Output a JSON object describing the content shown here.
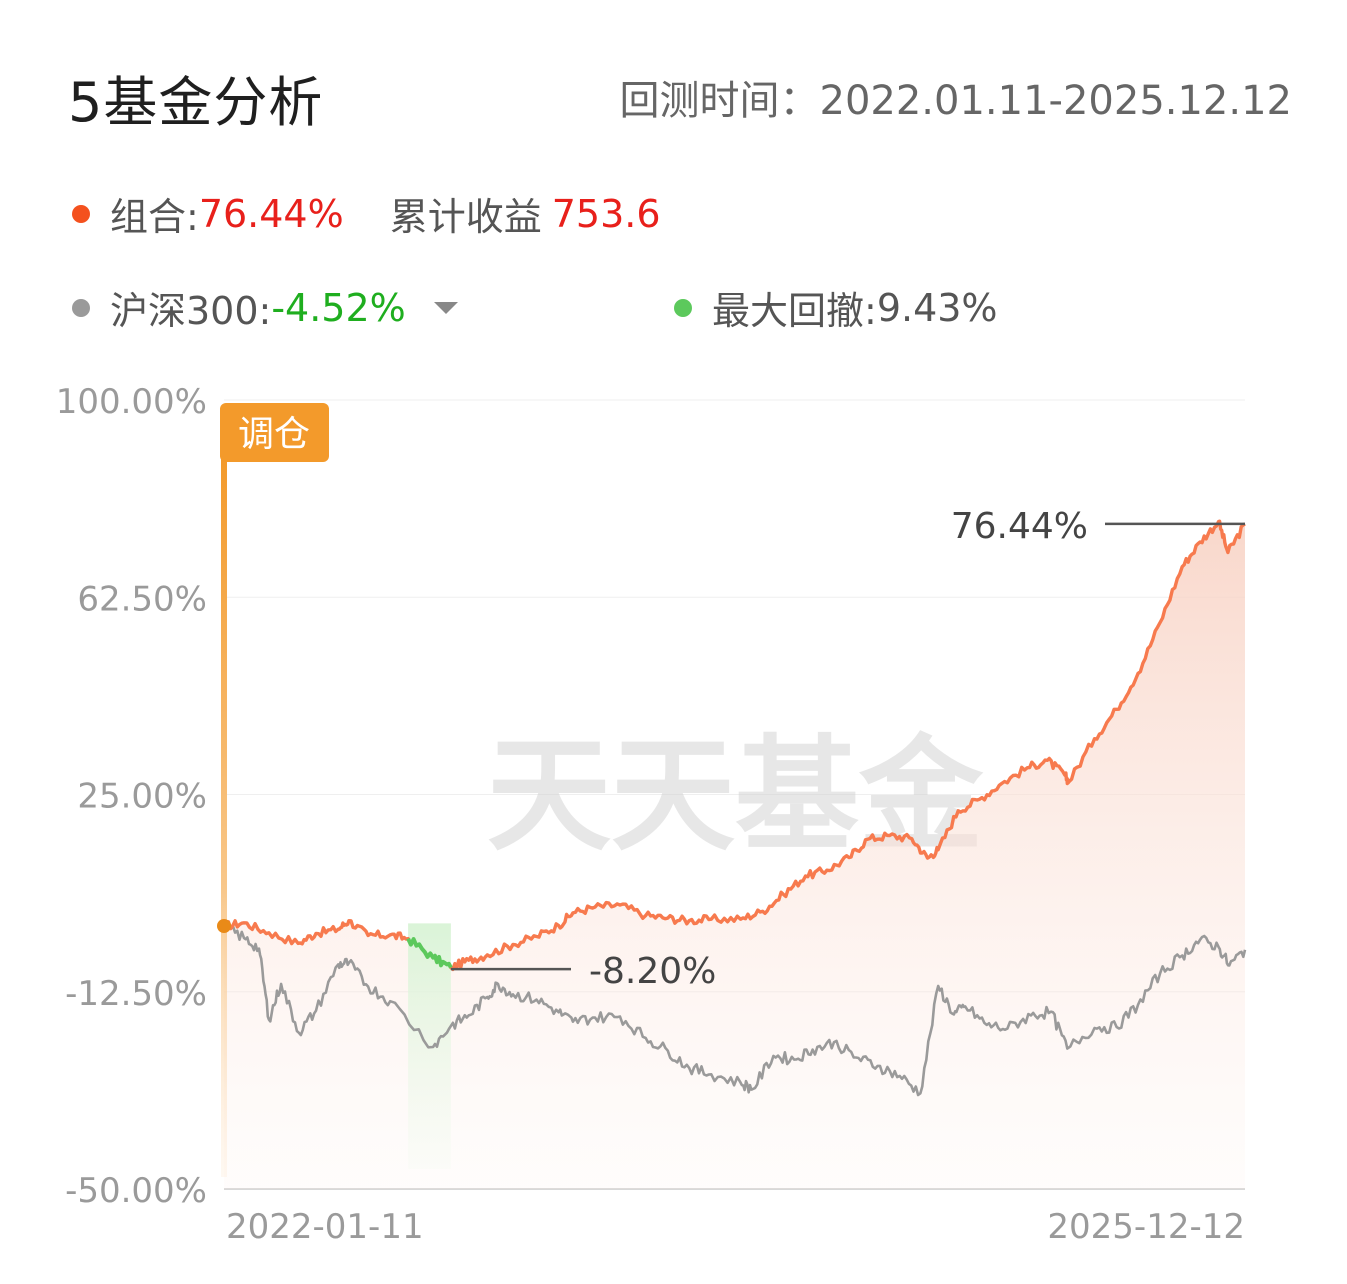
{
  "header": {
    "title": "5基金分析",
    "period": "回测时间：2022.01.11-2025.12.12"
  },
  "legend": {
    "portfolio_label": "组合:",
    "portfolio_value": "76.44%",
    "cumulative_label": "累计收益",
    "cumulative_value": "753.6",
    "benchmark_label": "沪深300:",
    "benchmark_value": "-4.52%",
    "drawdown_label": "最大回撤:",
    "drawdown_value": "9.43%"
  },
  "colors": {
    "portfolio": "#f4511e",
    "portfolio_line": "#f77a4e",
    "benchmark": "#9a9a9a",
    "drawdown": "#5cc95c",
    "rebalance": "#f39a2b",
    "positive": "#e8201b",
    "negative": "#1fae1f"
  },
  "badge": {
    "rebalance_label": "调仓"
  },
  "watermark": "天天基金",
  "chart_data": {
    "type": "line",
    "x_start": "2022-01-11",
    "x_end": "2025-12-12",
    "x_tick_labels": [
      "2022-01-11",
      "2025-12-12"
    ],
    "y_tick_labels": [
      "100.00%",
      "62.50%",
      "25.00%",
      "-12.50%",
      "-50.00%"
    ],
    "ylim": [
      -50,
      100
    ],
    "grid": true,
    "series": [
      {
        "name": "组合",
        "points": [
          [
            "2022-01-11",
            0.0
          ],
          [
            "2022-02-08",
            0.6
          ],
          [
            "2022-03-15",
            -1.3
          ],
          [
            "2022-04-25",
            -3.3
          ],
          [
            "2022-05-20",
            -1.4
          ],
          [
            "2022-06-20",
            -0.6
          ],
          [
            "2022-07-05",
            1.0
          ],
          [
            "2022-08-01",
            -1.8
          ],
          [
            "2022-09-01",
            -1.7
          ],
          [
            "2022-09-26",
            -2.4
          ],
          [
            "2022-10-31",
            -6.0
          ],
          [
            "2022-11-25",
            -7.9
          ],
          [
            "2022-12-20",
            -6.5
          ],
          [
            "2023-01-15",
            -5.5
          ],
          [
            "2023-02-20",
            -3.5
          ],
          [
            "2023-03-25",
            -2.0
          ],
          [
            "2023-04-25",
            0.1
          ],
          [
            "2023-05-15",
            2.5
          ],
          [
            "2023-06-15",
            3.6
          ],
          [
            "2023-07-20",
            4.0
          ],
          [
            "2023-08-25",
            2.0
          ],
          [
            "2023-09-25",
            1.5
          ],
          [
            "2023-10-25",
            1.0
          ],
          [
            "2023-11-25",
            1.3
          ],
          [
            "2024-01-05",
            1.3
          ],
          [
            "2024-02-05",
            2.8
          ],
          [
            "2024-03-05",
            6.0
          ],
          [
            "2024-04-05",
            9.5
          ],
          [
            "2024-05-05",
            10.6
          ],
          [
            "2024-06-05",
            13.0
          ],
          [
            "2024-07-01",
            16.5
          ],
          [
            "2024-08-01",
            17.2
          ],
          [
            "2024-09-01",
            16.6
          ],
          [
            "2024-09-23",
            12.9
          ],
          [
            "2024-10-08",
            14.5
          ],
          [
            "2024-11-05",
            21.9
          ],
          [
            "2024-12-05",
            24.1
          ],
          [
            "2025-01-05",
            27.1
          ],
          [
            "2025-02-10",
            30.1
          ],
          [
            "2025-03-10",
            31.5
          ],
          [
            "2025-04-03",
            28.8
          ],
          [
            "2025-04-09",
            27.4
          ],
          [
            "2025-05-15",
            35.6
          ],
          [
            "2025-06-15",
            41.2
          ],
          [
            "2025-07-15",
            48.0
          ],
          [
            "2025-08-15",
            57.7
          ],
          [
            "2025-09-15",
            68.3
          ],
          [
            "2025-10-10",
            73.0
          ],
          [
            "2025-11-05",
            76.9
          ],
          [
            "2025-11-18",
            71.0
          ],
          [
            "2025-12-12",
            76.44
          ]
        ]
      },
      {
        "name": "沪深300",
        "points": [
          [
            "2022-01-11",
            0.0
          ],
          [
            "2022-02-08",
            -2.3
          ],
          [
            "2022-03-01",
            -4.3
          ],
          [
            "2022-03-15",
            -17.8
          ],
          [
            "2022-04-01",
            -11.0
          ],
          [
            "2022-04-26",
            -20.3
          ],
          [
            "2022-05-20",
            -16.1
          ],
          [
            "2022-06-20",
            -7.3
          ],
          [
            "2022-07-05",
            -7.0
          ],
          [
            "2022-08-01",
            -11.5
          ],
          [
            "2022-09-01",
            -14.3
          ],
          [
            "2022-10-31",
            -23.0
          ],
          [
            "2022-11-25",
            -19.0
          ],
          [
            "2022-12-20",
            -17.0
          ],
          [
            "2023-01-15",
            -13.5
          ],
          [
            "2023-01-30",
            -11.0
          ],
          [
            "2023-02-20",
            -13.0
          ],
          [
            "2023-03-25",
            -14.0
          ],
          [
            "2023-04-25",
            -16.4
          ],
          [
            "2023-05-15",
            -18.2
          ],
          [
            "2023-06-15",
            -17.4
          ],
          [
            "2023-07-20",
            -17.2
          ],
          [
            "2023-08-25",
            -21.3
          ],
          [
            "2023-09-25",
            -23.7
          ],
          [
            "2023-10-25",
            -27.0
          ],
          [
            "2023-11-25",
            -28.2
          ],
          [
            "2024-01-05",
            -29.8
          ],
          [
            "2024-01-22",
            -31.0
          ],
          [
            "2024-02-20",
            -24.7
          ],
          [
            "2024-03-20",
            -25.4
          ],
          [
            "2024-04-15",
            -23.5
          ],
          [
            "2024-05-15",
            -22.1
          ],
          [
            "2024-06-15",
            -25.0
          ],
          [
            "2024-07-15",
            -26.6
          ],
          [
            "2024-08-15",
            -28.5
          ],
          [
            "2024-09-13",
            -31.8
          ],
          [
            "2024-10-08",
            -11.4
          ],
          [
            "2024-10-30",
            -16.8
          ],
          [
            "2024-11-15",
            -15.3
          ],
          [
            "2024-12-15",
            -18.8
          ],
          [
            "2025-01-13",
            -19.5
          ],
          [
            "2025-02-15",
            -17.0
          ],
          [
            "2025-03-15",
            -16.3
          ],
          [
            "2025-04-07",
            -23.3
          ],
          [
            "2025-05-15",
            -19.4
          ],
          [
            "2025-06-15",
            -19.2
          ],
          [
            "2025-07-15",
            -15.0
          ],
          [
            "2025-08-15",
            -9.0
          ],
          [
            "2025-09-15",
            -5.6
          ],
          [
            "2025-10-10",
            -2.6
          ],
          [
            "2025-11-05",
            -4.0
          ],
          [
            "2025-11-20",
            -7.5
          ],
          [
            "2025-12-12",
            -4.52
          ]
        ]
      }
    ],
    "rebalance": {
      "date": "2022-01-11",
      "label": "调仓"
    },
    "max_drawdown": {
      "start": "2022-09-26",
      "end": "2022-11-25",
      "value": 9.43,
      "trough_label": "-8.20%"
    },
    "annotations": [
      {
        "text": "76.44%",
        "date": "2025-12-12",
        "value": 76.44
      },
      {
        "text": "-8.20%",
        "date": "2022-11-25",
        "value": -8.2
      }
    ]
  }
}
